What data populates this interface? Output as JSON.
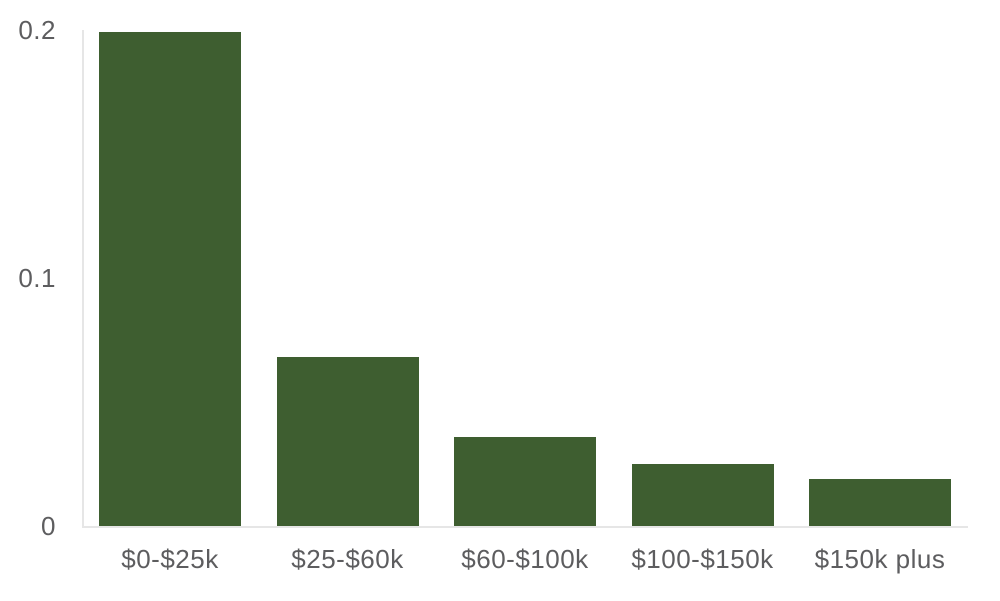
{
  "chart_data": {
    "type": "bar",
    "title": "",
    "xlabel": "",
    "ylabel": "",
    "categories": [
      "$0-$25k",
      "$25-$60k",
      "$60-$100k",
      "$100-$150k",
      "$150k plus"
    ],
    "values": [
      0.199,
      0.068,
      0.036,
      0.025,
      0.019
    ],
    "ylim": [
      0,
      0.2
    ],
    "yticks": [
      {
        "value": 0,
        "label": "0"
      },
      {
        "value": 0.1,
        "label": "0.1"
      },
      {
        "value": 0.2,
        "label": "0.2"
      }
    ],
    "grid": false,
    "legend": "none",
    "colors": {
      "bar": "#3e5e30",
      "axis_line": "#e6e6e6",
      "tick_label": "#5d5d5f",
      "background": "#ffffff"
    }
  }
}
